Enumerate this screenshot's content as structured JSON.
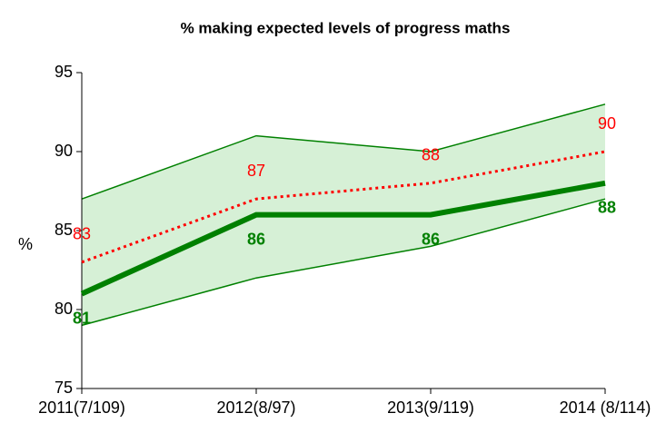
{
  "chart_data": {
    "type": "line",
    "title": "% making expected levels of progress maths",
    "y_label": "%",
    "categories": [
      "2011(7/109)",
      "2012(8/97)",
      "2013(9/119)",
      "2014 (8/114)"
    ],
    "band": {
      "upper": [
        87,
        91,
        90,
        93
      ],
      "lower": [
        79,
        82,
        84,
        87
      ],
      "color": "#008000",
      "fill": "#d6f0d6"
    },
    "series": [
      {
        "color": "#008000",
        "style": "solid",
        "values": [
          81,
          86,
          86,
          88
        ]
      },
      {
        "color": "#ff0000",
        "style": "dotted",
        "values": [
          83,
          87,
          88,
          90
        ]
      }
    ],
    "ylim": [
      75,
      95
    ],
    "yticks": [
      75,
      80,
      85,
      90,
      95
    ],
    "grid": false
  }
}
